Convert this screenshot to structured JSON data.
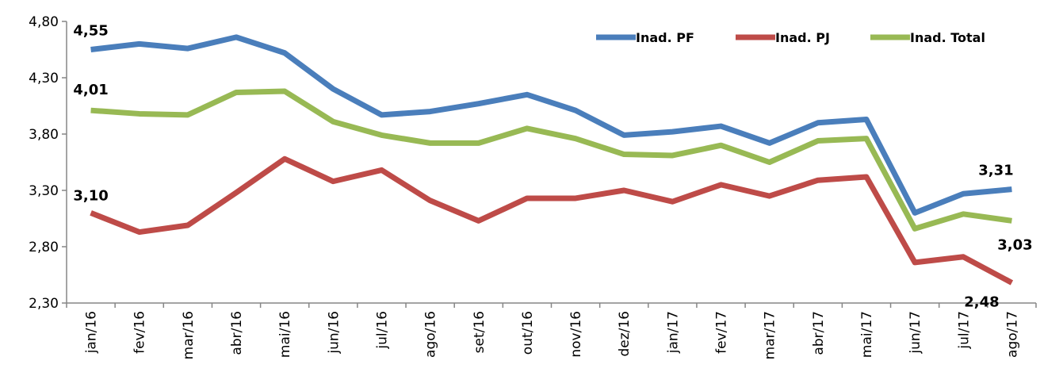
{
  "chart_data": {
    "type": "line",
    "categories": [
      "jan/16",
      "fev/16",
      "mar/16",
      "abr/16",
      "mai/16",
      "jun/16",
      "jul/16",
      "ago/16",
      "set/16",
      "out/16",
      "nov/16",
      "dez/16",
      "jan/17",
      "fev/17",
      "mar/17",
      "abr/17",
      "mai/17",
      "jun/17",
      "jul/17",
      "ago/17"
    ],
    "series": [
      {
        "name": "Inad. PF",
        "color": "#4a7ebb",
        "values": [
          4.55,
          4.6,
          4.56,
          4.66,
          4.52,
          4.2,
          3.97,
          4.0,
          4.07,
          4.15,
          4.01,
          3.79,
          3.82,
          3.87,
          3.72,
          3.9,
          3.93,
          3.1,
          3.27,
          3.31
        ],
        "value_labels": [
          "4,55",
          null,
          null,
          null,
          null,
          null,
          null,
          null,
          null,
          null,
          null,
          null,
          null,
          null,
          null,
          null,
          null,
          null,
          null,
          "3,31"
        ]
      },
      {
        "name": "Inad. PJ",
        "color": "#be4b48",
        "values": [
          3.1,
          2.93,
          2.99,
          3.28,
          3.58,
          3.38,
          3.48,
          3.21,
          3.03,
          3.23,
          3.23,
          3.3,
          3.2,
          3.35,
          3.25,
          3.39,
          3.42,
          2.66,
          2.71,
          2.48
        ],
        "value_labels": [
          "3,10",
          null,
          null,
          null,
          null,
          null,
          null,
          null,
          null,
          null,
          null,
          null,
          null,
          null,
          null,
          null,
          null,
          null,
          null,
          "2,48"
        ]
      },
      {
        "name": "Inad. Total",
        "color": "#98b954",
        "values": [
          4.01,
          3.98,
          3.97,
          4.17,
          4.18,
          3.91,
          3.79,
          3.72,
          3.72,
          3.85,
          3.76,
          3.62,
          3.61,
          3.7,
          3.55,
          3.74,
          3.76,
          2.96,
          3.09,
          3.03
        ],
        "value_labels": [
          "4,01",
          null,
          null,
          null,
          null,
          null,
          null,
          null,
          null,
          null,
          null,
          null,
          null,
          null,
          null,
          null,
          null,
          null,
          null,
          "3,03"
        ]
      }
    ],
    "ylim": [
      2.3,
      4.8
    ],
    "yticks": [
      {
        "value": 2.3,
        "label": "2,30"
      },
      {
        "value": 2.8,
        "label": "2,80"
      },
      {
        "value": 3.3,
        "label": "3,30"
      },
      {
        "value": 3.8,
        "label": "3,80"
      },
      {
        "value": 4.3,
        "label": "4,30"
      },
      {
        "value": 4.8,
        "label": "4,80"
      }
    ],
    "legend": "top-right"
  }
}
